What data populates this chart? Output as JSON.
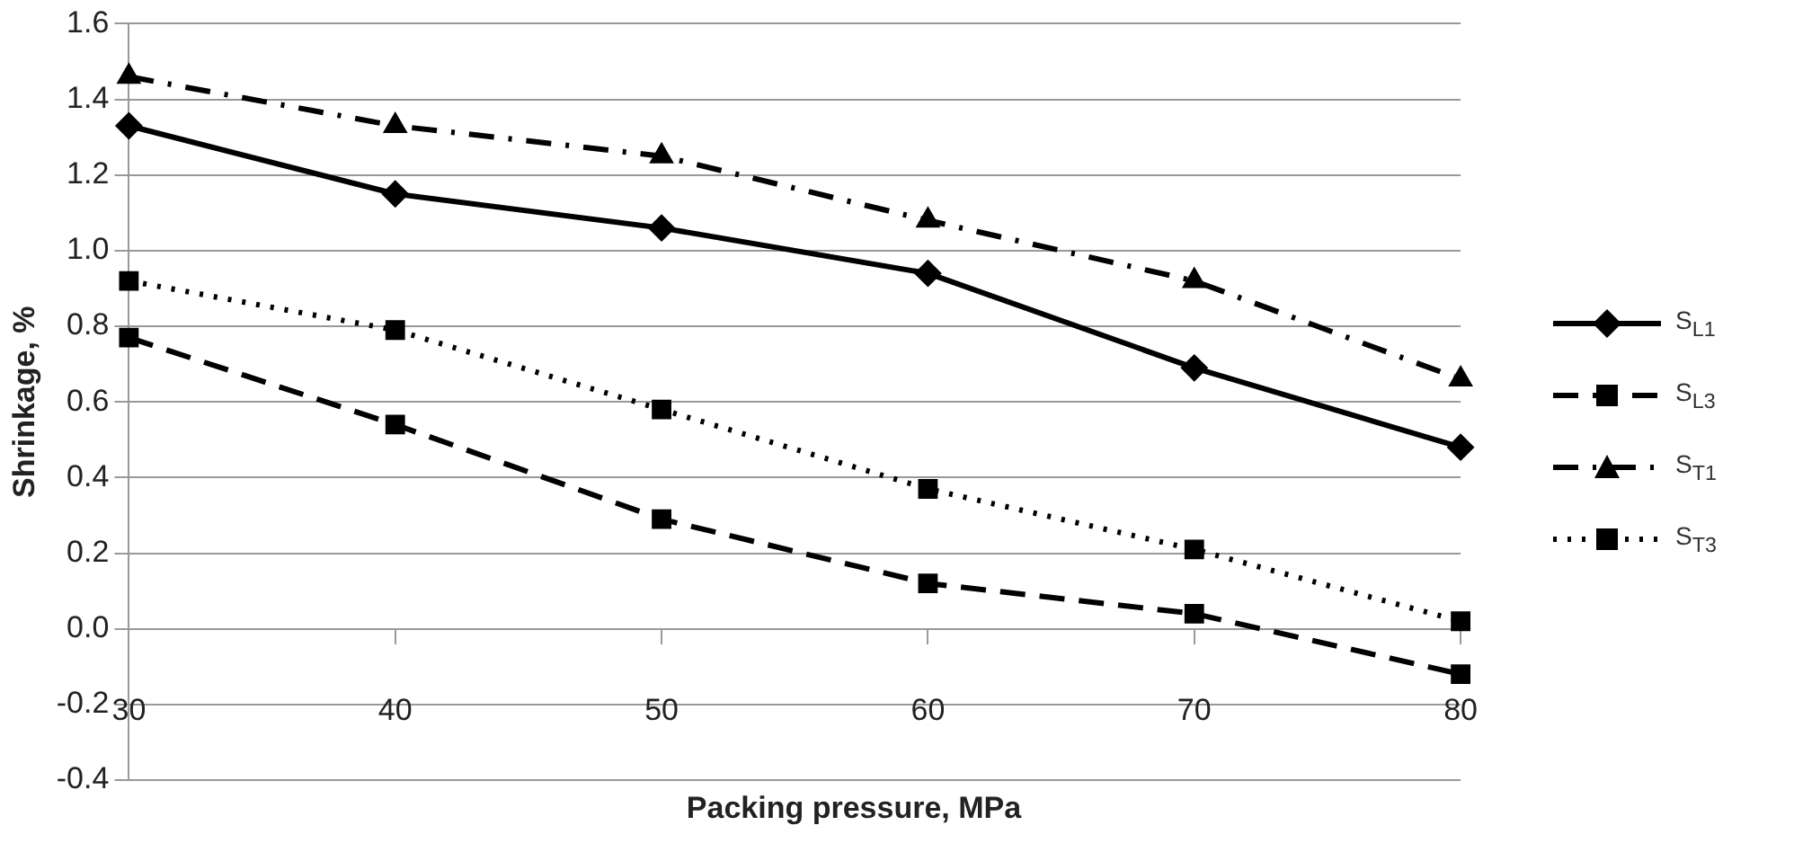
{
  "chart_data": {
    "type": "line",
    "xlabel": "Packing pressure, MPa",
    "ylabel": "Shrinkage, %",
    "categories": [
      "30",
      "40",
      "50",
      "60",
      "70",
      "80"
    ],
    "ylim": [
      -0.4,
      1.6
    ],
    "yticks": [
      {
        "value": -0.4,
        "label": "-0.4"
      },
      {
        "value": -0.2,
        "label": "-0.2"
      },
      {
        "value": 0,
        "label": "0.0"
      },
      {
        "value": 0.2,
        "label": "0.2"
      },
      {
        "value": 0.4,
        "label": "0.4"
      },
      {
        "value": 0.6,
        "label": "0.6"
      },
      {
        "value": 0.8,
        "label": "0.8"
      },
      {
        "value": 1.0,
        "label": "1.0"
      },
      {
        "value": 1.2,
        "label": "1.2"
      },
      {
        "value": 1.4,
        "label": "1.4"
      },
      {
        "value": 1.6,
        "label": "1.6"
      }
    ],
    "grid": "y",
    "legend": "right",
    "series": [
      {
        "name": "S$_{L1}$",
        "color": "#000000",
        "marker": "diamond",
        "line_style": "solid",
        "values": [
          1.33,
          1.15,
          1.06,
          0.94,
          0.69,
          0.48
        ]
      },
      {
        "name": "S$_{L3}$",
        "color": "#000000",
        "marker": "square",
        "line_style": "dashed",
        "values": [
          0.77,
          0.54,
          0.29,
          0.12,
          0.04,
          -0.12
        ]
      },
      {
        "name": "S$_{T1}$",
        "color": "#000000",
        "marker": "triangle",
        "line_style": "dashdot",
        "values": [
          1.46,
          1.33,
          1.25,
          1.08,
          0.92,
          0.66
        ]
      },
      {
        "name": "S$_{T3}$",
        "color": "#000000",
        "marker": "square",
        "line_style": "dotted",
        "values": [
          0.92,
          0.79,
          0.58,
          0.37,
          0.21,
          0.02
        ]
      }
    ]
  }
}
